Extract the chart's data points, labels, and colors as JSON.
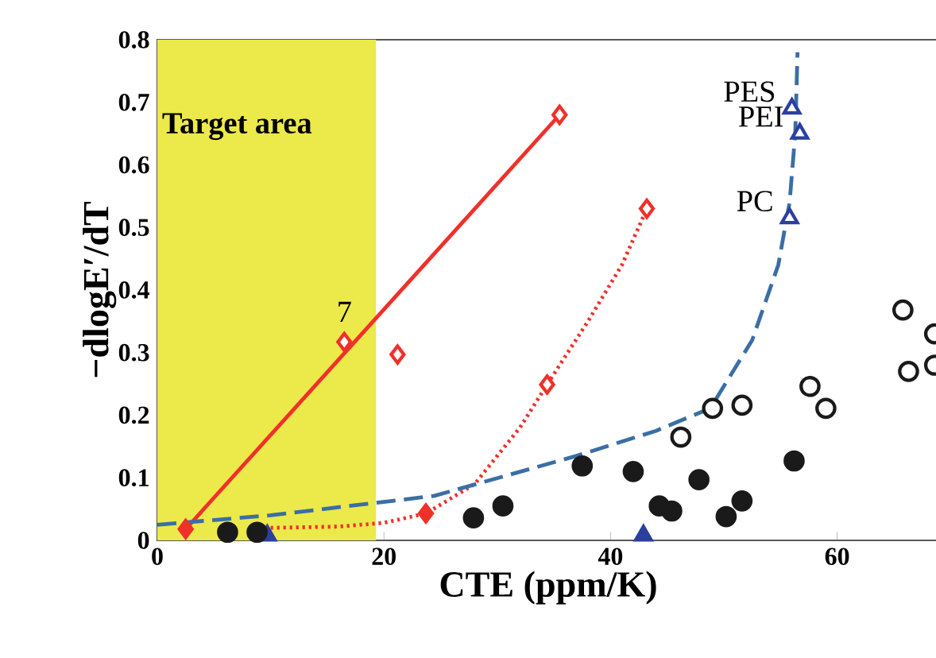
{
  "chart_data": {
    "type": "scatter",
    "xlabel": "CTE (ppm/K)",
    "ylabel": "−dlogE′/dT",
    "xlim": [
      0,
      69
    ],
    "xticks": [
      0,
      20,
      40,
      60
    ],
    "ylim": [
      0,
      0.8
    ],
    "yticks": [
      0,
      0.1,
      0.2,
      0.3,
      0.4,
      0.5,
      0.6,
      0.7,
      0.8
    ],
    "grid": false,
    "bands": [
      {
        "axis": "x",
        "from": 0,
        "to": 19.3,
        "label": "Target area",
        "color": "#ece94a"
      }
    ],
    "series": [
      {
        "type": "line",
        "line_style": "solid",
        "color": "#f0302a",
        "x": [
          2.5,
          35.5
        ],
        "values": [
          0.018,
          0.68
        ]
      },
      {
        "type": "line",
        "line_style": "dotted",
        "color": "#f0302a",
        "x": [
          10,
          16,
          20,
          23.7,
          28,
          32,
          34.4,
          38,
          41,
          43.2
        ],
        "values": [
          0.02,
          0.022,
          0.028,
          0.043,
          0.09,
          0.18,
          0.249,
          0.35,
          0.44,
          0.53
        ]
      },
      {
        "type": "line",
        "line_style": "dashed",
        "color": "#3a6ea5",
        "x": [
          0,
          10,
          24.4,
          37,
          44,
          48.8,
          52.5,
          54.8,
          55.8,
          56.3,
          56.5
        ],
        "values": [
          0.025,
          0.04,
          0.071,
          0.135,
          0.175,
          0.211,
          0.32,
          0.44,
          0.54,
          0.65,
          0.78
        ]
      },
      {
        "marker": "diamond",
        "color": "#f0302a",
        "x": [
          2.5,
          23.7
        ],
        "values": [
          0.018,
          0.043
        ]
      },
      {
        "marker": "diamond-open",
        "color": "#f0302a",
        "x": [
          16.5,
          21.2,
          35.5,
          34.4,
          43.2
        ],
        "values": [
          0.317,
          0.297,
          0.68,
          0.249,
          0.53
        ]
      },
      {
        "marker": "triangle",
        "color": "#2b3fa0",
        "x": [
          9.7,
          42.9
        ],
        "values": [
          0.008,
          0.008
        ]
      },
      {
        "marker": "triangle-open",
        "color": "#2b3fa0",
        "x": [
          56,
          56.7,
          55.8
        ],
        "values": [
          0.69,
          0.65,
          0.515
        ]
      },
      {
        "marker": "circle",
        "color": "#1a1a1a",
        "x": [
          6.2,
          8.8,
          27.9,
          30.5,
          37.5,
          42,
          44.3,
          45.4,
          47.8,
          50.2,
          51.6,
          56.2
        ],
        "values": [
          0.013,
          0.013,
          0.036,
          0.055,
          0.119,
          0.11,
          0.055,
          0.047,
          0.097,
          0.038,
          0.063,
          0.127
        ]
      },
      {
        "marker": "circle-open",
        "color": "#1a1a1a",
        "x": [
          46.2,
          49,
          51.6,
          57.6,
          59,
          65.8,
          66.3,
          68.6,
          68.6
        ],
        "values": [
          0.165,
          0.211,
          0.216,
          0.246,
          0.211,
          0.368,
          0.27,
          0.33,
          0.28
        ]
      }
    ],
    "annotations": [
      {
        "text": "7",
        "x": 16.5,
        "y": 0.317
      },
      {
        "text": "PES",
        "x": 56,
        "y": 0.69
      },
      {
        "text": "PEI",
        "x": 56.7,
        "y": 0.65
      },
      {
        "text": "PC",
        "x": 55.8,
        "y": 0.515
      }
    ]
  }
}
